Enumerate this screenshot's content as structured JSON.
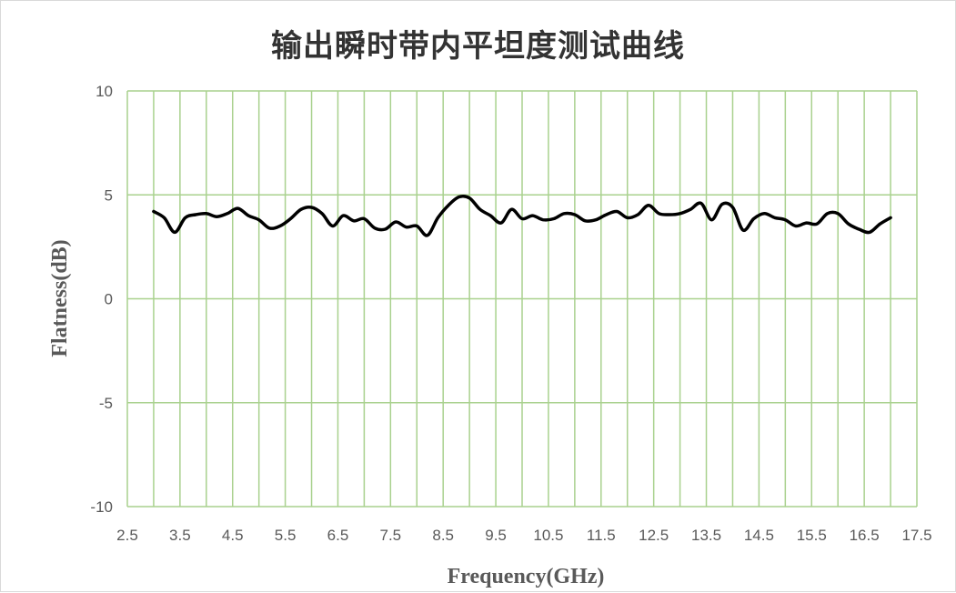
{
  "chart_data": {
    "type": "line",
    "title": "输出瞬时带内平坦度测试曲线",
    "xlabel": "Frequency(GHz)",
    "ylabel": "Flatness(dB)",
    "xlim": [
      2.5,
      17.5
    ],
    "ylim": [
      -10,
      10
    ],
    "x_ticks": [
      "2.5",
      "3.5",
      "4.5",
      "5.5",
      "6.5",
      "7.5",
      "8.5",
      "9.5",
      "10.5",
      "11.5",
      "12.5",
      "13.5",
      "14.5",
      "15.5",
      "16.5",
      "17.5"
    ],
    "y_ticks": [
      "10",
      "5",
      "0",
      "-5",
      "-10"
    ],
    "x_tick_values": [
      2.5,
      3,
      3.5,
      4,
      4.5,
      5,
      5.5,
      6,
      6.5,
      7,
      7.5,
      8,
      8.5,
      9,
      9.5,
      10,
      10.5,
      11,
      11.5,
      12,
      12.5,
      13,
      13.5,
      14,
      14.5,
      15,
      15.5,
      16,
      16.5,
      17,
      17.5
    ],
    "y_tick_values": [
      10,
      5,
      0,
      -5,
      -10
    ],
    "grid": true,
    "grid_color": "#a9d18e",
    "line_color": "#000000",
    "series": [
      {
        "x": [
          3.0,
          3.2,
          3.4,
          3.6,
          3.8,
          4.0,
          4.2,
          4.4,
          4.6,
          4.8,
          5.0,
          5.2,
          5.4,
          5.6,
          5.8,
          6.0,
          6.2,
          6.4,
          6.6,
          6.8,
          7.0,
          7.2,
          7.4,
          7.6,
          7.8,
          8.0,
          8.2,
          8.4,
          8.6,
          8.8,
          9.0,
          9.2,
          9.4,
          9.6,
          9.8,
          10.0,
          10.2,
          10.4,
          10.6,
          10.8,
          11.0,
          11.2,
          11.4,
          11.6,
          11.8,
          12.0,
          12.2,
          12.4,
          12.6,
          12.8,
          13.0,
          13.2,
          13.4,
          13.6,
          13.8,
          14.0,
          14.2,
          14.4,
          14.6,
          14.8,
          15.0,
          15.2,
          15.4,
          15.6,
          15.8,
          16.0,
          16.2,
          16.4,
          16.6,
          16.8,
          17.0
        ],
        "values": [
          4.2,
          3.9,
          3.2,
          3.9,
          4.05,
          4.1,
          3.95,
          4.1,
          4.35,
          4.0,
          3.8,
          3.4,
          3.5,
          3.85,
          4.3,
          4.4,
          4.1,
          3.5,
          4.0,
          3.75,
          3.85,
          3.4,
          3.35,
          3.7,
          3.45,
          3.5,
          3.05,
          3.9,
          4.5,
          4.9,
          4.85,
          4.3,
          4.0,
          3.65,
          4.3,
          3.85,
          4.0,
          3.8,
          3.85,
          4.1,
          4.05,
          3.75,
          3.8,
          4.05,
          4.2,
          3.9,
          4.05,
          4.5,
          4.1,
          4.05,
          4.1,
          4.3,
          4.6,
          3.8,
          4.55,
          4.4,
          3.3,
          3.85,
          4.1,
          3.9,
          3.8,
          3.5,
          3.65,
          3.6,
          4.1,
          4.1,
          3.6,
          3.35,
          3.2,
          3.6,
          3.9
        ]
      }
    ]
  }
}
